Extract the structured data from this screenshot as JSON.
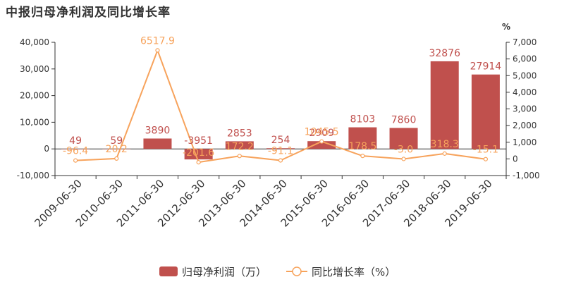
{
  "chart_data": {
    "type": "bar",
    "title": "中报归母净利润及同比增长率",
    "categories": [
      "2009-06-30",
      "2010-06-30",
      "2011-06-30",
      "2012-06-30",
      "2013-06-30",
      "2014-06-30",
      "2015-06-30",
      "2016-06-30",
      "2017-06-30",
      "2018-06-30",
      "2019-06-30"
    ],
    "series": [
      {
        "name": "归母净利润（万）",
        "type": "bar",
        "axis": "left",
        "color": "#c0504d",
        "values": [
          49,
          59,
          3890,
          -3951,
          2853,
          254,
          2909,
          8103,
          7860,
          32876,
          27914
        ],
        "labels": [
          "49",
          "59",
          "3890",
          "-3951",
          "2853",
          "254",
          "2909",
          "8103",
          "7860",
          "32876",
          "27914"
        ]
      },
      {
        "name": "同比增长率（%）",
        "type": "line",
        "axis": "right",
        "color": "#f7a35c",
        "values": [
          -96.4,
          20.2,
          6517.9,
          -201.6,
          172.2,
          -91.1,
          1045.5,
          178.5,
          -3.0,
          318.3,
          -15.1
        ],
        "labels": [
          "-96.4",
          "20.2",
          "6517.9",
          "-201.6",
          "172.2",
          "-91.1",
          "1045.5",
          "178.5",
          "-3.0",
          "318.3",
          "-15.1"
        ]
      }
    ],
    "y_left": {
      "min": -10000,
      "max": 40000,
      "ticks": [
        -10000,
        0,
        10000,
        20000,
        30000,
        40000
      ],
      "tick_labels": [
        "-10,000",
        "0",
        "10,000",
        "20,000",
        "30,000",
        "40,000"
      ]
    },
    "y_right": {
      "min": -1000,
      "max": 7000,
      "unit": "%",
      "ticks": [
        -1000,
        0,
        1000,
        2000,
        3000,
        4000,
        5000,
        6000,
        7000
      ],
      "tick_labels": [
        "-1,000",
        "0",
        "1,000",
        "2,000",
        "3,000",
        "4,000",
        "5,000",
        "6,000",
        "7,000"
      ]
    },
    "legend": {
      "position": "bottom-center",
      "items": [
        "归母净利润（万）",
        "同比增长率（%）"
      ]
    },
    "grid": false
  }
}
